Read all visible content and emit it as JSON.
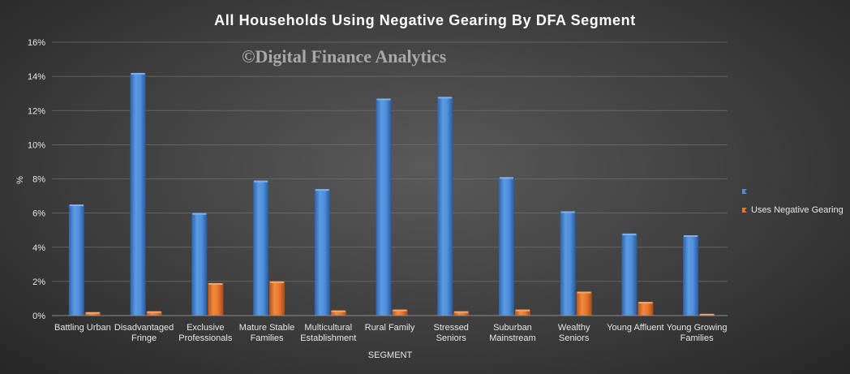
{
  "chart_data": {
    "type": "bar",
    "title": "All Households  Using  Negative  Gearing  By DFA Segment",
    "watermark": "©Digital Finance Analytics",
    "xlabel": "SEGMENT",
    "ylabel": "%",
    "ylim": [
      0,
      16
    ],
    "yticks": [
      "0%",
      "2%",
      "4%",
      "6%",
      "8%",
      "10%",
      "12%",
      "14%",
      "16%"
    ],
    "grid": true,
    "legend_position": "right",
    "categories": [
      [
        "Battling Urban"
      ],
      [
        "Disadvantaged",
        "Fringe"
      ],
      [
        "Exclusive",
        "Professionals"
      ],
      [
        "Mature Stable",
        "Families"
      ],
      [
        "Multicultural",
        "Establishment"
      ],
      [
        "Rural Family"
      ],
      [
        "Stressed",
        "Seniors"
      ],
      [
        "Suburban",
        "Mainstream"
      ],
      [
        "Wealthy",
        "Seniors"
      ],
      [
        "Young Affluent"
      ],
      [
        "Young Growing",
        "Families"
      ]
    ],
    "series": [
      {
        "name": "",
        "color": "#4f8fdb",
        "values": [
          6.5,
          14.2,
          6.0,
          7.9,
          7.4,
          12.7,
          12.8,
          8.1,
          6.1,
          4.8,
          4.7
        ]
      },
      {
        "name": "Uses Negative Gearing",
        "color": "#e8772e",
        "values": [
          0.2,
          0.25,
          1.9,
          2.0,
          0.3,
          0.35,
          0.25,
          0.35,
          1.4,
          0.8,
          0.1
        ]
      }
    ]
  }
}
